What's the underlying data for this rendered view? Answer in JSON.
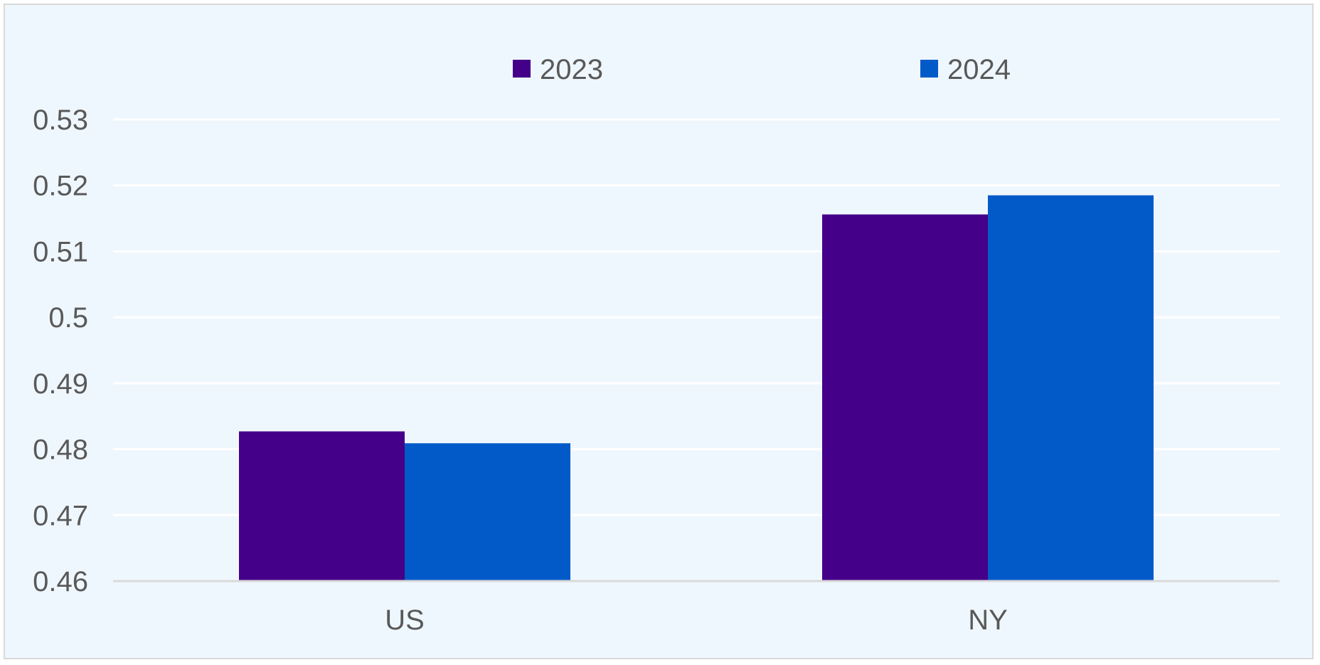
{
  "chart_data": {
    "type": "bar",
    "title": "",
    "xlabel": "",
    "ylabel": "",
    "categories": [
      "US",
      "NY"
    ],
    "series": [
      {
        "name": "2023",
        "color": "#440088",
        "values": [
          0.4827,
          0.5156
        ]
      },
      {
        "name": "2024",
        "color": "#025ac9",
        "values": [
          0.4809,
          0.5185
        ]
      }
    ],
    "ylim": [
      0.46,
      0.53
    ],
    "y_ticks": [
      "0.46",
      "0.47",
      "0.48",
      "0.49",
      "0.5",
      "0.51",
      "0.52",
      "0.53"
    ],
    "grid": true,
    "legend_position": "top-center",
    "colors": {
      "background": "#eff7fe",
      "gridline": "#ffffff",
      "axis_line": "#d9d9d9",
      "text": "#595959"
    }
  }
}
